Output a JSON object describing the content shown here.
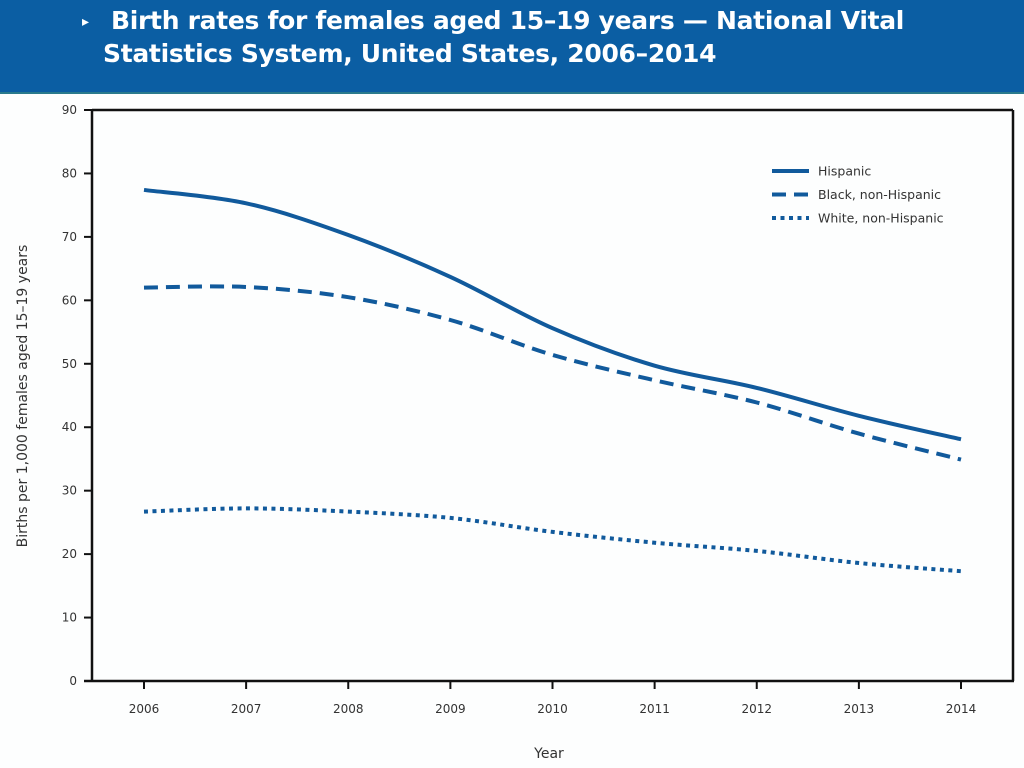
{
  "header": {
    "bullet_icon": "▸",
    "title": "Birth rates for females aged 15–19 years — National Vital Statistics System, United States, 2006–2014"
  },
  "colors": {
    "header_bg": "#0b5ea3",
    "line": "#115a9c",
    "axis": "#111111"
  },
  "chart_data": {
    "type": "line",
    "title": "Birth rates for females aged 15–19 years — National Vital Statistics System, United States, 2006–2014",
    "xlabel": "Year",
    "ylabel": "Births per 1,000 females aged 15–19 years",
    "x": [
      "2006",
      "2007",
      "2008",
      "2009",
      "2010",
      "2011",
      "2012",
      "2013",
      "2014"
    ],
    "ylim": [
      0,
      90
    ],
    "yticks": [
      "0",
      "10",
      "20",
      "30",
      "40",
      "50",
      "60",
      "70",
      "80",
      "90"
    ],
    "grid": false,
    "legend_position": "top-right",
    "series": [
      {
        "name": "Hispanic",
        "style": "solid",
        "values": [
          77.4,
          75.3,
          70.3,
          63.7,
          55.6,
          49.7,
          46.2,
          41.8,
          38.1
        ]
      },
      {
        "name": "Black, non-Hispanic",
        "style": "dashed",
        "values": [
          62.0,
          62.1,
          60.5,
          56.9,
          51.4,
          47.4,
          43.9,
          39.0,
          34.9
        ]
      },
      {
        "name": "White, non-Hispanic",
        "style": "dotted",
        "values": [
          26.7,
          27.2,
          26.7,
          25.7,
          23.5,
          21.8,
          20.5,
          18.6,
          17.3
        ]
      }
    ]
  }
}
